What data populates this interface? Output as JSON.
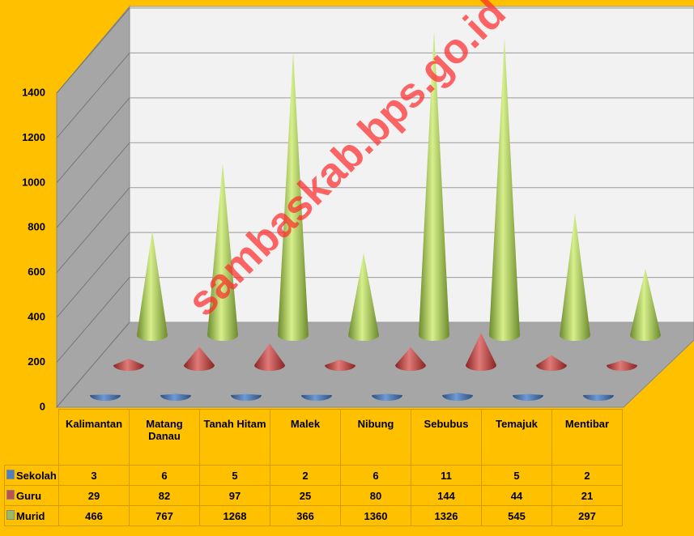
{
  "chart_data": {
    "type": "cone",
    "categories": [
      "Kalimantan",
      "Matang Danau",
      "Tanah Hitam",
      "Malek",
      "Nibung",
      "Sebubus",
      "Temajuk",
      "Mentibar"
    ],
    "series": [
      {
        "name": "Sekolah",
        "color": "#4f81bd",
        "values": [
          3,
          6,
          5,
          2,
          6,
          11,
          5,
          2
        ]
      },
      {
        "name": "Guru",
        "color": "#c0504d",
        "values": [
          29,
          82,
          97,
          25,
          80,
          144,
          44,
          21
        ]
      },
      {
        "name": "Murid",
        "color": "#9bbb59",
        "values": [
          466,
          767,
          1268,
          366,
          1360,
          1326,
          545,
          297
        ]
      }
    ],
    "ylim": [
      0,
      1400
    ],
    "yticks": [
      0,
      200,
      400,
      600,
      800,
      1000,
      1200,
      1400
    ],
    "grid": true,
    "watermark": "sambaskab.bps.go.id"
  }
}
